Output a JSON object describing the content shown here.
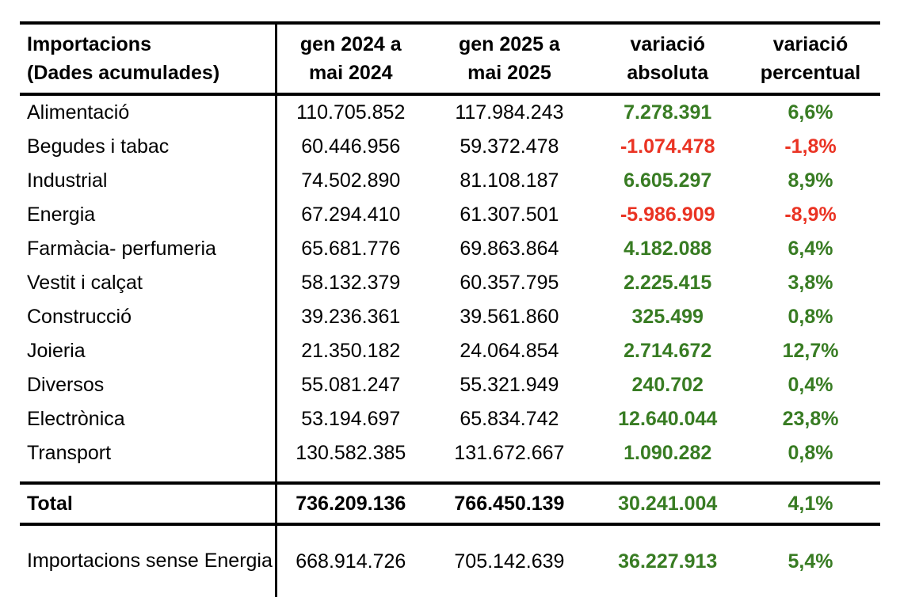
{
  "colors": {
    "positive": "#387c23",
    "negative": "#ea3323",
    "text": "#000000",
    "rule": "#000000",
    "background": "#ffffff"
  },
  "chart_data": {
    "type": "table",
    "title": "Importacions (Dades acumulades)",
    "columns": [
      "Importacions (Dades acumulades)",
      "gen 2024 a mai 2024",
      "gen 2025 a mai 2025",
      "variació absoluta",
      "variació percentual"
    ],
    "header": {
      "label_line1": "Importacions",
      "label_line2": "(Dades acumulades)",
      "col2_line1": "gen 2024 a",
      "col2_line2": "mai 2024",
      "col3_line1": "gen 2025 a",
      "col3_line2": "mai 2025",
      "col4_line1": "variació",
      "col4_line2": "absoluta",
      "col5_line1": "variació",
      "col5_line2": "percentual"
    },
    "rows": [
      {
        "name": "Alimentació",
        "v2024": "110.705.852",
        "v2025": "117.984.243",
        "abs": "7.278.391",
        "pct": "6,6%"
      },
      {
        "name": "Begudes i tabac",
        "v2024": "60.446.956",
        "v2025": "59.372.478",
        "abs": "-1.074.478",
        "pct": "-1,8%"
      },
      {
        "name": "Industrial",
        "v2024": "74.502.890",
        "v2025": "81.108.187",
        "abs": "6.605.297",
        "pct": "8,9%"
      },
      {
        "name": "Energia",
        "v2024": "67.294.410",
        "v2025": "61.307.501",
        "abs": "-5.986.909",
        "pct": "-8,9%"
      },
      {
        "name": "Farmàcia- perfumeria",
        "v2024": "65.681.776",
        "v2025": "69.863.864",
        "abs": "4.182.088",
        "pct": "6,4%"
      },
      {
        "name": "Vestit i calçat",
        "v2024": "58.132.379",
        "v2025": "60.357.795",
        "abs": "2.225.415",
        "pct": "3,8%"
      },
      {
        "name": "Construcció",
        "v2024": "39.236.361",
        "v2025": "39.561.860",
        "abs": "325.499",
        "pct": "0,8%"
      },
      {
        "name": "Joieria",
        "v2024": "21.350.182",
        "v2025": "24.064.854",
        "abs": "2.714.672",
        "pct": "12,7%"
      },
      {
        "name": "Diversos",
        "v2024": "55.081.247",
        "v2025": "55.321.949",
        "abs": "240.702",
        "pct": "0,4%"
      },
      {
        "name": "Electrònica",
        "v2024": "53.194.697",
        "v2025": "65.834.742",
        "abs": "12.640.044",
        "pct": "23,8%"
      },
      {
        "name": "Transport",
        "v2024": "130.582.385",
        "v2025": "131.672.667",
        "abs": "1.090.282",
        "pct": "0,8%"
      }
    ],
    "total_row": {
      "name": "Total",
      "v2024": "736.209.136",
      "v2025": "766.450.139",
      "abs": "30.241.004",
      "pct": "4,1%"
    },
    "extra_row": {
      "name": "Importacions sense Energia",
      "v2024": "668.914.726",
      "v2025": "705.142.639",
      "abs": "36.227.913",
      "pct": "5,4%"
    }
  }
}
